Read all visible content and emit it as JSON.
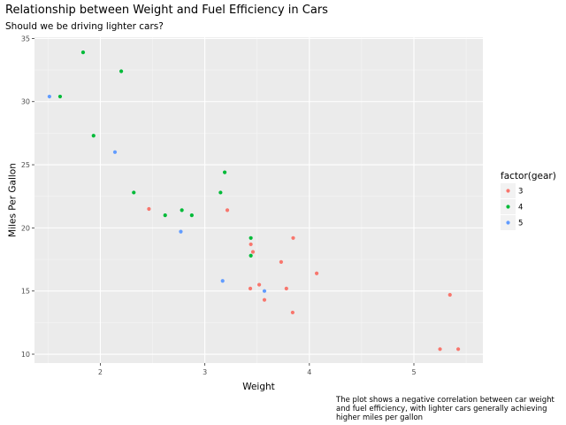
{
  "chart_data": {
    "type": "scatter",
    "title": "Relationship between Weight and Fuel Efficiency in Cars",
    "subtitle": "Should we be driving lighter cars?",
    "caption": "The plot shows a negative correlation between car weight and fuel efficiency, with lighter cars generally achieving higher miles per gallon",
    "xlabel": "Weight",
    "ylabel": "Miles Per Gallon",
    "xlim": [
      1.37,
      5.66
    ],
    "ylim": [
      9.3,
      35.1
    ],
    "x_ticks": [
      2,
      3,
      4,
      5
    ],
    "y_ticks": [
      10,
      15,
      20,
      25,
      30,
      35
    ],
    "grid": true,
    "legend": {
      "title": "factor(gear)",
      "placement": "right",
      "entries": [
        "3",
        "4",
        "5"
      ]
    },
    "colors": {
      "3": "#F8766D",
      "4": "#00BA38",
      "5": "#619CFF"
    },
    "series": [
      {
        "name": "3",
        "points": [
          [
            2.465,
            21.5
          ],
          [
            3.215,
            21.4
          ],
          [
            3.44,
            18.7
          ],
          [
            3.46,
            18.1
          ],
          [
            3.57,
            14.3
          ],
          [
            4.07,
            16.4
          ],
          [
            3.73,
            17.3
          ],
          [
            3.78,
            15.2
          ],
          [
            5.25,
            10.4
          ],
          [
            5.424,
            10.4
          ],
          [
            5.345,
            14.7
          ],
          [
            3.52,
            15.5
          ],
          [
            3.435,
            15.2
          ],
          [
            3.84,
            13.3
          ],
          [
            3.845,
            19.2
          ]
        ]
      },
      {
        "name": "4",
        "points": [
          [
            2.62,
            21.0
          ],
          [
            2.875,
            21.0
          ],
          [
            2.32,
            22.8
          ],
          [
            3.19,
            24.4
          ],
          [
            3.15,
            22.8
          ],
          [
            3.44,
            19.2
          ],
          [
            3.44,
            17.8
          ],
          [
            2.2,
            32.4
          ],
          [
            1.615,
            30.4
          ],
          [
            1.835,
            33.9
          ],
          [
            1.935,
            27.3
          ],
          [
            2.78,
            21.4
          ]
        ]
      },
      {
        "name": "5",
        "points": [
          [
            2.14,
            26.0
          ],
          [
            1.513,
            30.4
          ],
          [
            3.17,
            15.8
          ],
          [
            2.77,
            19.7
          ],
          [
            3.57,
            15.0
          ]
        ]
      }
    ]
  }
}
